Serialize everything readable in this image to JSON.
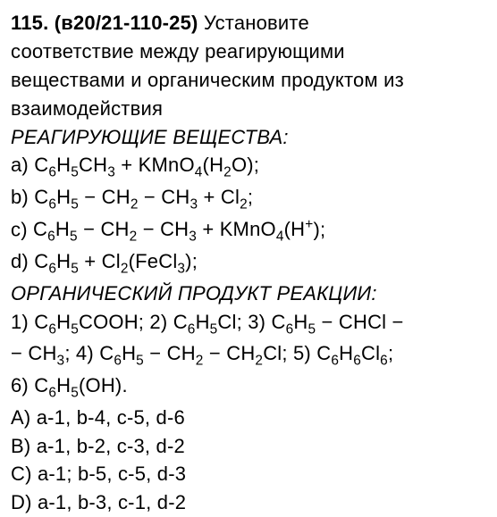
{
  "qnum": "115.",
  "qcode": "(в20/21-110-25)",
  "prompt": "Установите соответствие между реагирующими веществами и органическим продуктом из взаимодействия",
  "reagents_header": "РЕАГИРУЮЩИЕ ВЕЩЕСТВА:",
  "products_header": "ОРГАНИЧЕСКИЙ ПРОДУКТ РЕАКЦИИ:",
  "reagents": {
    "a": {
      "label": "a)",
      "formula_html": "C<sub>6</sub>H<sub>5</sub>CH<sub>3</sub> + KMnO<sub>4</sub>(H<sub>2</sub>O);"
    },
    "b": {
      "label": "b)",
      "formula_html": "C<sub>6</sub>H<sub>5</sub> − CH<sub>2</sub> − CH<sub>3</sub> + Cl<sub>2</sub>;"
    },
    "c": {
      "label": "c)",
      "start_html": "C<sub>6</sub>H<sub>5</sub> − CH<sub>2</sub> − CH<sub>3</sub> + KMnO<sub>4</sub>(H",
      "sup": "+",
      "end_html": ");"
    },
    "d": {
      "label": "d)",
      "formula_html": "C<sub>6</sub>H<sub>5</sub> + Cl<sub>2</sub>(FeCl<sub>3</sub>);"
    }
  },
  "products_line1_html": "1) C<sub>6</sub>H<sub>5</sub>COOH; 2) C<sub>6</sub>H<sub>5</sub>Cl; 3) C<sub>6</sub>H<sub>5</sub> − CHCl −",
  "products_line2_html": "− CH<sub>3</sub>; 4) C<sub>6</sub>H<sub>5</sub> − CH<sub>2</sub> − CH<sub>2</sub>Cl; 5) C<sub>6</sub>H<sub>6</sub>Cl<sub>6</sub>;",
  "products_line3_html": "6) C<sub>6</sub>H<sub>5</sub>(OH).",
  "answers": {
    "A": {
      "label": "A)",
      "text": "a-1, b-4, c-5, d-6"
    },
    "B": {
      "label": "B)",
      "text": "a-1, b-2, c-3, d-2"
    },
    "C": {
      "label": "C)",
      "text": "a-1; b-5, c-5, d-3"
    },
    "D": {
      "label": "D)",
      "text": "a-1, b-3, c-1, d-2"
    }
  }
}
